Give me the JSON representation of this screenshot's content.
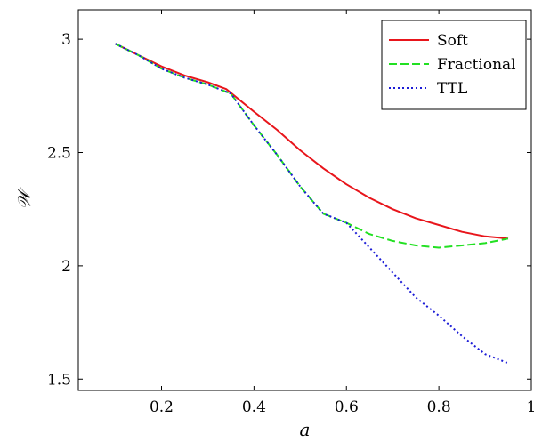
{
  "chart_data": {
    "type": "line",
    "xlabel": "a",
    "ylabel": "𝒲",
    "xlim": [
      0.02,
      1.0
    ],
    "ylim": [
      1.45,
      3.13
    ],
    "xticks": [
      0.2,
      0.4,
      0.6,
      0.8,
      1
    ],
    "xtick_labels": [
      "0.2",
      "0.4",
      "0.6",
      "0.8",
      "1"
    ],
    "yticks": [
      1.5,
      2,
      2.5,
      3
    ],
    "ytick_labels": [
      "1.5",
      "2",
      "2.5",
      "3"
    ],
    "grid": false,
    "legend": "top-right",
    "series": [
      {
        "name": "Soft",
        "color": "#e8151b",
        "dash": "solid",
        "x": [
          0.1,
          0.15,
          0.2,
          0.25,
          0.3,
          0.34,
          0.4,
          0.45,
          0.5,
          0.55,
          0.6,
          0.65,
          0.7,
          0.75,
          0.8,
          0.85,
          0.9,
          0.95
        ],
        "y": [
          2.98,
          2.93,
          2.88,
          2.84,
          2.81,
          2.78,
          2.68,
          2.6,
          2.51,
          2.43,
          2.36,
          2.3,
          2.25,
          2.21,
          2.18,
          2.15,
          2.13,
          2.12
        ]
      },
      {
        "name": "Fractional",
        "color": "#22e022",
        "dash": "dashed",
        "x": [
          0.1,
          0.15,
          0.2,
          0.25,
          0.3,
          0.35,
          0.4,
          0.45,
          0.5,
          0.55,
          0.6,
          0.65,
          0.7,
          0.75,
          0.8,
          0.85,
          0.9,
          0.95
        ],
        "y": [
          2.98,
          2.93,
          2.87,
          2.83,
          2.8,
          2.76,
          2.62,
          2.49,
          2.35,
          2.23,
          2.19,
          2.14,
          2.11,
          2.09,
          2.08,
          2.09,
          2.1,
          2.12
        ]
      },
      {
        "name": "TTL",
        "color": "#1c1cd6",
        "dash": "dotted",
        "x": [
          0.1,
          0.15,
          0.2,
          0.25,
          0.3,
          0.35,
          0.4,
          0.45,
          0.5,
          0.55,
          0.6,
          0.65,
          0.7,
          0.75,
          0.8,
          0.85,
          0.9,
          0.95
        ],
        "y": [
          2.98,
          2.93,
          2.87,
          2.83,
          2.8,
          2.76,
          2.62,
          2.49,
          2.35,
          2.23,
          2.19,
          2.08,
          1.97,
          1.86,
          1.78,
          1.69,
          1.61,
          1.57
        ]
      }
    ]
  }
}
